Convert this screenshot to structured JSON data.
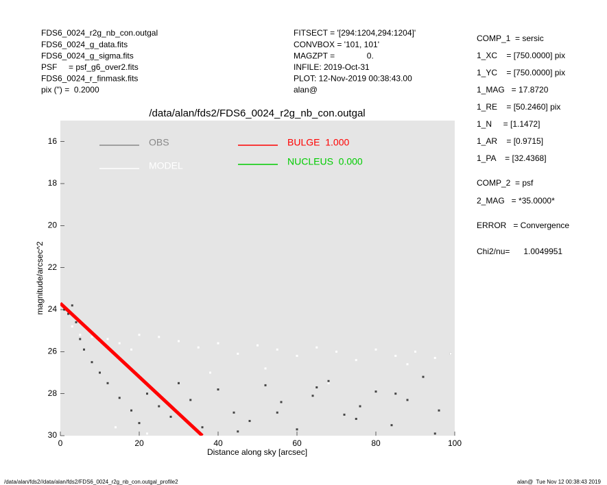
{
  "header": {
    "left": [
      "FDS6_0024_r2g_nb_con.outgal",
      "FDS6_0024_g_data.fits",
      "FDS6_0024_g_sigma.fits",
      "PSF     = psf_g6_over2.fits",
      "FDS6_0024_r_finmask.fits",
      "pix (\") =  0.2000"
    ],
    "middle": [
      "FITSECT = '[294:1204,294:1204]'",
      "CONVBOX = '101, 101'",
      "MAGZPT =              0.",
      "INFILE: 2019-Oct-31",
      "PLOT: 12-Nov-2019 00:38:43.00",
      "alan@"
    ]
  },
  "components": [
    "COMP_1  = sersic",
    "1_XC    = [750.0000] pix",
    "1_YC    = [750.0000] pix",
    "1_MAG   = 17.8720",
    "1_RE    = [50.2460] pix",
    "1_N     = [1.1472]",
    "1_AR    = [0.9715]",
    "1_PA    = [32.4368]",
    "COMP_2  = psf",
    "2_MAG   = *35.0000*",
    "ERROR   = Convergence",
    "Chi2/nu=      1.0049951"
  ],
  "footer": {
    "left": "/data/alan/fds2//data/alan/fds2/FDS6_0024_r2g_nb_con.outgal_profile2",
    "right": "alan@  Tue Nov 12 00:38:43 2019"
  },
  "chart_data": {
    "type": "scatter",
    "title": "/data/alan/fds2/FDS6_0024_r2g_nb_con.outgal",
    "x_label": "Distance along sky [arcsec]",
    "y_label": "magnitude/arcsec^2",
    "xlim": [
      0,
      100
    ],
    "xticks": [
      0,
      20,
      40,
      60,
      80,
      100
    ],
    "ylim": [
      30,
      15
    ],
    "yticks": [
      16,
      18,
      20,
      22,
      24,
      26,
      28,
      30
    ],
    "background": "#e5e5e5",
    "series": [
      {
        "name": "OBS",
        "color": "#444444",
        "legend_color": "#888888",
        "mode": "markers",
        "x": [
          1,
          2,
          3,
          4,
          5,
          6,
          8,
          10,
          12,
          15,
          18,
          20,
          22,
          25,
          28,
          30,
          33,
          36,
          40,
          44,
          48,
          52,
          56,
          60,
          64,
          68,
          72,
          76,
          80,
          84,
          88,
          92,
          96,
          99,
          45,
          55,
          65,
          75,
          85,
          95
        ],
        "values": [
          24.0,
          24.2,
          23.8,
          24.6,
          25.4,
          25.9,
          26.5,
          27.0,
          27.5,
          28.2,
          28.8,
          29.4,
          28.0,
          28.6,
          29.1,
          27.5,
          28.3,
          29.6,
          27.8,
          28.9,
          29.3,
          27.6,
          28.4,
          29.7,
          28.1,
          27.4,
          29.0,
          28.6,
          27.9,
          29.5,
          28.3,
          27.2,
          28.8,
          26.1,
          29.8,
          28.9,
          27.7,
          29.2,
          28.0,
          29.9
        ]
      },
      {
        "name": "MODEL",
        "color": "#ffffff",
        "legend_color": "#ffffff",
        "mode": "markers",
        "x": [
          3,
          5,
          8,
          10,
          12,
          15,
          18,
          20,
          25,
          30,
          35,
          40,
          45,
          50,
          55,
          60,
          65,
          70,
          75,
          80,
          85,
          90,
          95,
          99,
          14,
          22,
          38,
          52,
          68,
          88
        ],
        "values": [
          24.8,
          25.2,
          25.3,
          25.5,
          25.4,
          25.6,
          25.9,
          25.2,
          25.3,
          25.5,
          25.8,
          25.6,
          26.1,
          25.7,
          25.9,
          26.2,
          25.8,
          26.0,
          26.4,
          25.9,
          26.2,
          26.0,
          26.3,
          26.1,
          29.6,
          29.9,
          27.0,
          26.8,
          27.5,
          26.6
        ]
      },
      {
        "name": "BULGE  1.000",
        "color": "#ff0000",
        "legend_color": "#ff0000",
        "mode": "line",
        "x": [
          0,
          36
        ],
        "values": [
          23.7,
          30
        ]
      },
      {
        "name": "NUCLEUS  0.000",
        "color": "#00cc00",
        "legend_color": "#00cc00",
        "mode": "line",
        "x": [],
        "values": []
      }
    ]
  }
}
